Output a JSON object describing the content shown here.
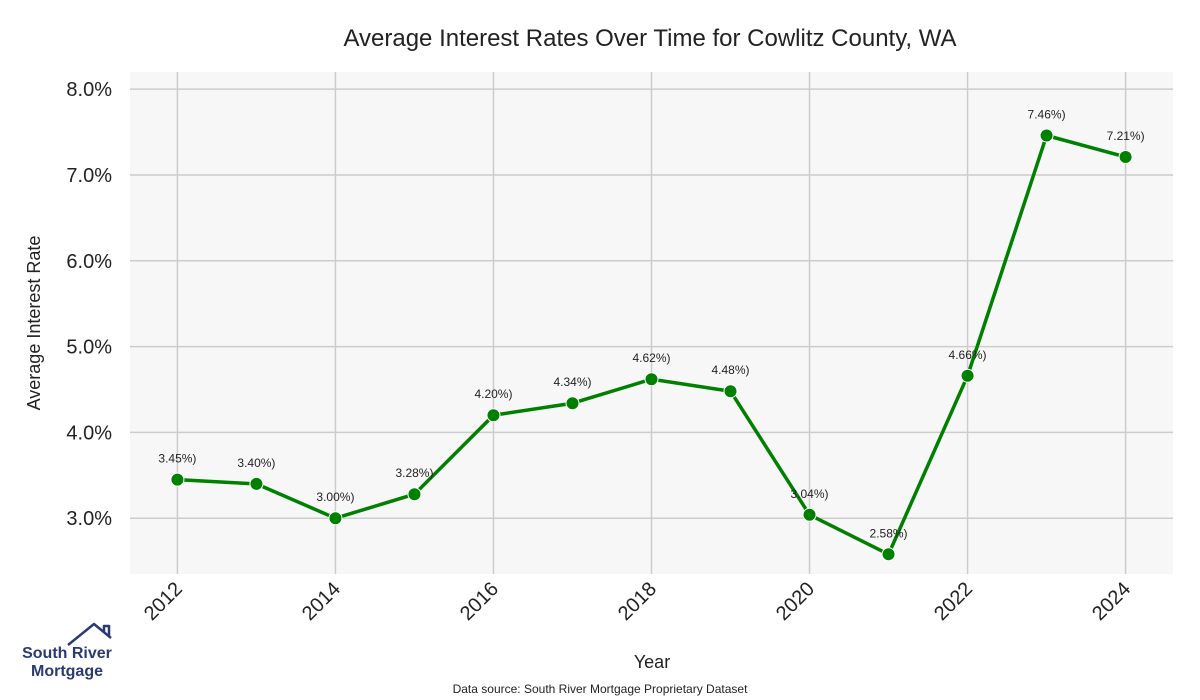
{
  "chart_data": {
    "type": "line",
    "title": "Average Interest Rates Over Time for Cowlitz County, WA",
    "xlabel": "Year",
    "ylabel": "Average Interest Rate",
    "x": [
      2012,
      2013,
      2014,
      2015,
      2016,
      2017,
      2018,
      2019,
      2020,
      2021,
      2022,
      2023,
      2024
    ],
    "series": [
      {
        "values": [
          3.45,
          3.4,
          3.0,
          3.28,
          4.2,
          4.34,
          4.62,
          4.48,
          3.04,
          2.58,
          4.66,
          7.46,
          7.21
        ],
        "labels": [
          "3.45%)",
          "3.40%)",
          "3.00%)",
          "3.28%)",
          "4.20%)",
          "4.34%)",
          "4.62%)",
          "4.48%)",
          "3.04%)",
          "2.58%)",
          "4.66%)",
          "7.46%)",
          "7.21%)"
        ],
        "color": "#008000"
      }
    ],
    "xticks": [
      "2012",
      "2014",
      "2016",
      "2018",
      "2020",
      "2022",
      "2024"
    ],
    "yticks": [
      "3.0%",
      "4.0%",
      "5.0%",
      "6.0%",
      "7.0%",
      "8.0%"
    ],
    "ytick_values": [
      3.0,
      4.0,
      5.0,
      6.0,
      7.0,
      8.0
    ],
    "xlim": [
      2011.4,
      2024.6
    ],
    "ylim": [
      2.35,
      8.2
    ],
    "grid": true,
    "background": "#f7f7f7",
    "grid_color": "#cccccc"
  },
  "source_note": "Data source: South River Mortgage Proprietary Dataset",
  "logo": {
    "line1": "South River",
    "line2": "Mortgage",
    "color": "#2a3a73"
  }
}
